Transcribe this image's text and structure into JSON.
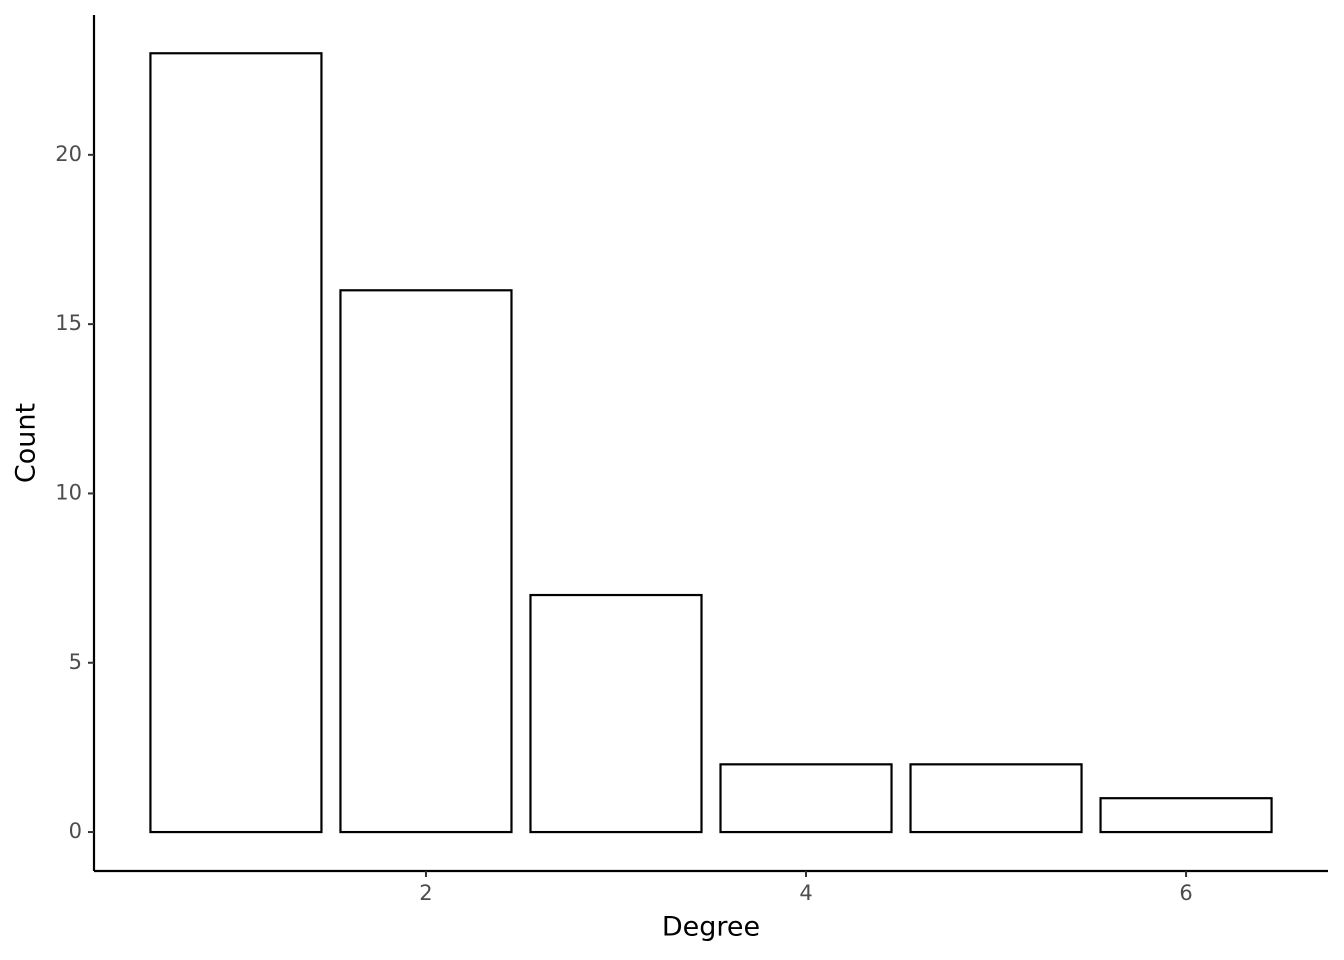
{
  "chart_data": {
    "type": "bar",
    "x_label": "Degree",
    "y_label": "Count",
    "x": [
      1,
      2,
      3,
      4,
      5,
      6
    ],
    "values": [
      23,
      16,
      7,
      2,
      2,
      1
    ],
    "color": "#ffffff",
    "edgecolor": "#000000",
    "xlim": [
      0.253,
      6.747
    ],
    "xticks": [
      2,
      4,
      6
    ],
    "ylim": [
      -1.15,
      24.13
    ],
    "yticks": [
      0,
      5,
      10,
      15,
      20
    ],
    "grid": false
  }
}
